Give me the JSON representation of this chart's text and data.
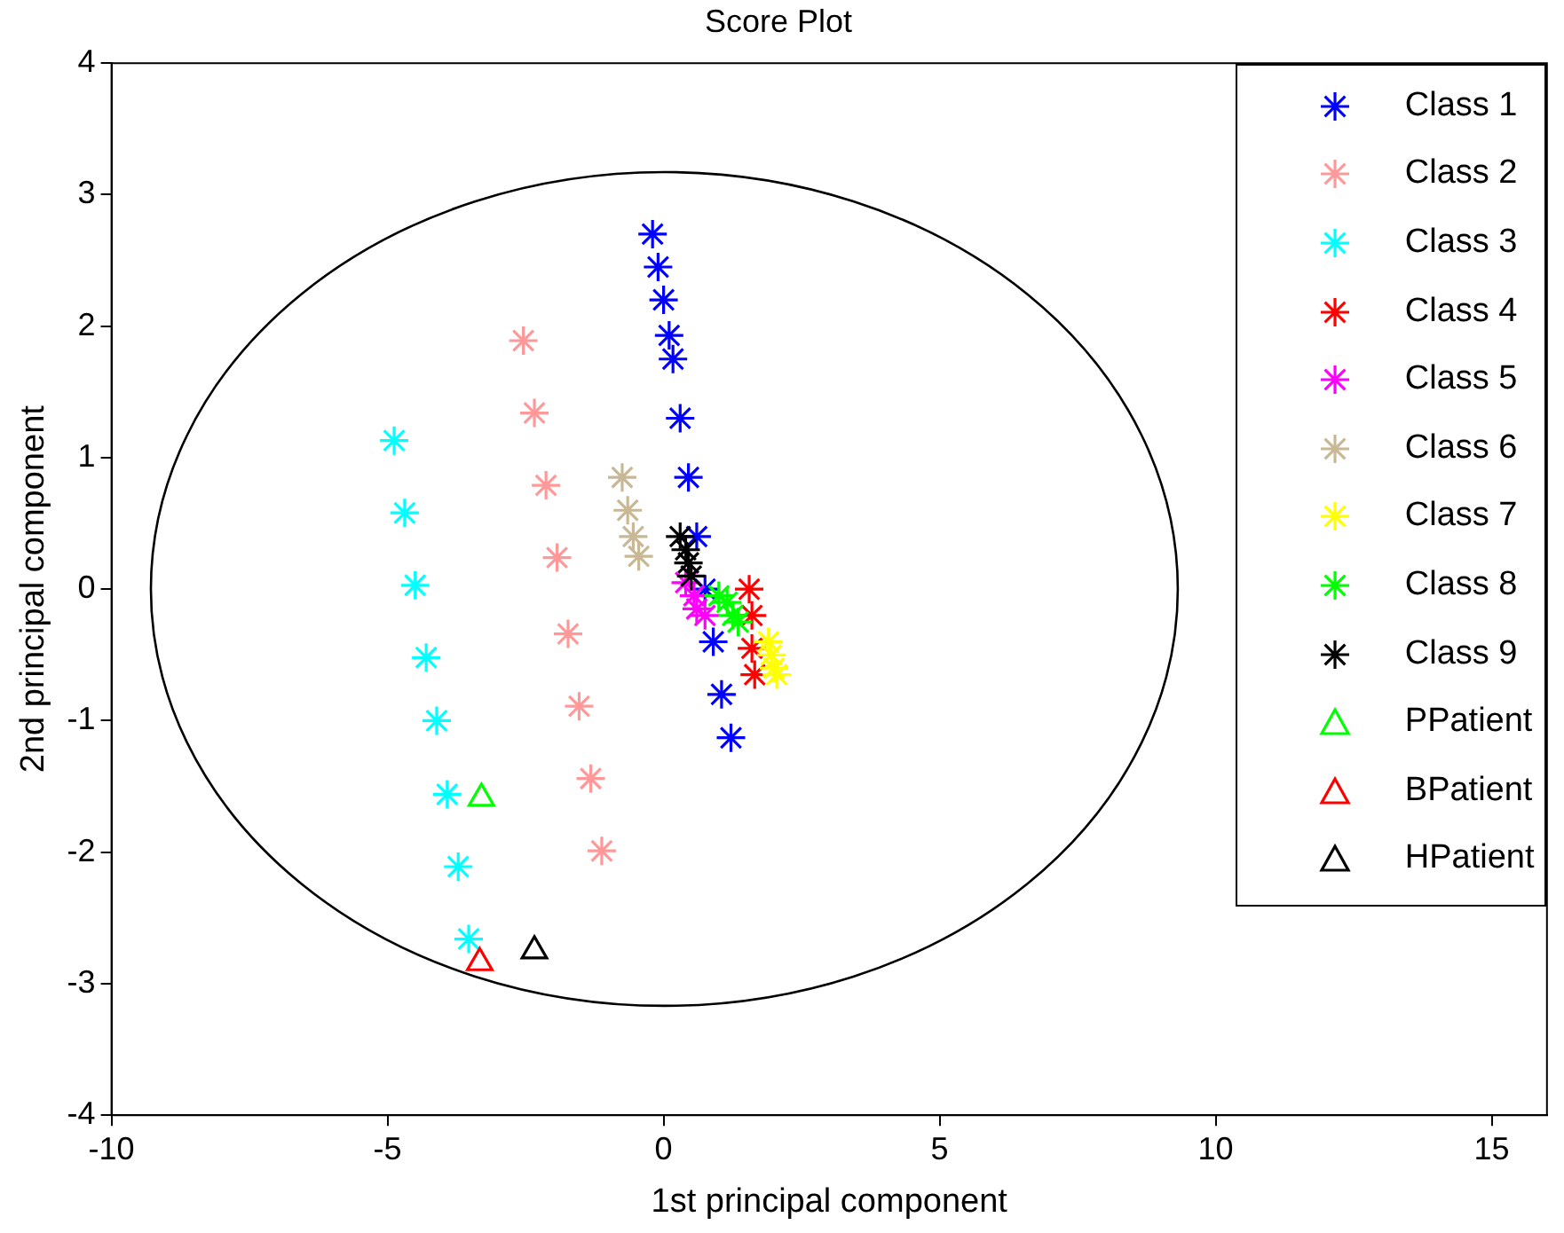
{
  "chart_data": {
    "type": "scatter",
    "title": "Score Plot",
    "xlabel": "1st principal component",
    "ylabel": "2nd principal component",
    "xlim": [
      -10,
      16
    ],
    "ylim": [
      -4,
      4
    ],
    "xticks": [
      -10,
      -5,
      0,
      5,
      10,
      15
    ],
    "yticks": [
      -4,
      -3,
      -2,
      -1,
      0,
      1,
      2,
      3,
      4
    ],
    "grid": false,
    "legend": "top right",
    "series": [
      {
        "name": "Class 1",
        "color": "#0000ff",
        "marker": "cross",
        "x": [
          -0.2,
          -0.1,
          0.0,
          0.1,
          0.17,
          0.3,
          0.45,
          0.6,
          0.75,
          0.9,
          1.05,
          1.22
        ],
        "values": [
          2.7,
          2.45,
          2.2,
          1.93,
          1.75,
          1.3,
          0.85,
          0.4,
          0.0,
          -0.4,
          -0.8,
          -1.13
        ]
      },
      {
        "name": "Class 2",
        "color": "#ff9999",
        "marker": "cross",
        "x": [
          -2.54,
          -2.34,
          -2.13,
          -1.93,
          -1.73,
          -1.53,
          -1.32,
          -1.12
        ],
        "values": [
          1.89,
          1.34,
          0.79,
          0.24,
          -0.34,
          -0.89,
          -1.44,
          -1.99
        ]
      },
      {
        "name": "Class 3",
        "color": "#00ffff",
        "marker": "cross",
        "x": [
          -4.88,
          -4.69,
          -4.5,
          -4.3,
          -4.11,
          -3.92,
          -3.72,
          -3.53
        ],
        "values": [
          1.13,
          0.58,
          0.03,
          -0.52,
          -1.0,
          -1.56,
          -2.11,
          -2.66
        ]
      },
      {
        "name": "Class 4",
        "color": "#ff0000",
        "marker": "cross",
        "x": [
          1.55,
          1.6,
          1.6,
          1.65
        ],
        "values": [
          0.0,
          -0.2,
          -0.45,
          -0.65
        ]
      },
      {
        "name": "Class 5",
        "color": "#ff00ff",
        "marker": "cross",
        "x": [
          0.4,
          0.55,
          0.6,
          0.75
        ],
        "values": [
          0.05,
          -0.05,
          -0.15,
          -0.2
        ]
      },
      {
        "name": "Class 6",
        "color": "#c8b896",
        "marker": "cross",
        "x": [
          -0.75,
          -0.65,
          -0.55,
          -0.45
        ],
        "values": [
          0.85,
          0.6,
          0.4,
          0.25
        ]
      },
      {
        "name": "Class 7",
        "color": "#ffff00",
        "marker": "cross",
        "x": [
          1.9,
          1.95,
          2.0,
          2.05
        ],
        "values": [
          -0.4,
          -0.5,
          -0.6,
          -0.65
        ]
      },
      {
        "name": "Class 8",
        "color": "#00ff00",
        "marker": "cross",
        "x": [
          1.0,
          1.15,
          1.25,
          1.35
        ],
        "values": [
          -0.05,
          -0.1,
          -0.2,
          -0.25
        ]
      },
      {
        "name": "Class 9",
        "color": "#000000",
        "marker": "cross",
        "x": [
          0.3,
          0.4,
          0.45,
          0.5
        ],
        "values": [
          0.4,
          0.3,
          0.2,
          0.1
        ]
      },
      {
        "name": "PPatient",
        "color": "#00ff00",
        "marker": "triangle",
        "x": [
          -3.3
        ],
        "values": [
          -1.59
        ]
      },
      {
        "name": "BPatient",
        "color": "#ff0000",
        "marker": "triangle",
        "x": [
          -3.33
        ],
        "values": [
          -2.84
        ]
      },
      {
        "name": "HPatient",
        "color": "#000000",
        "marker": "triangle",
        "x": [
          -2.34
        ],
        "values": [
          -2.75
        ]
      }
    ]
  }
}
